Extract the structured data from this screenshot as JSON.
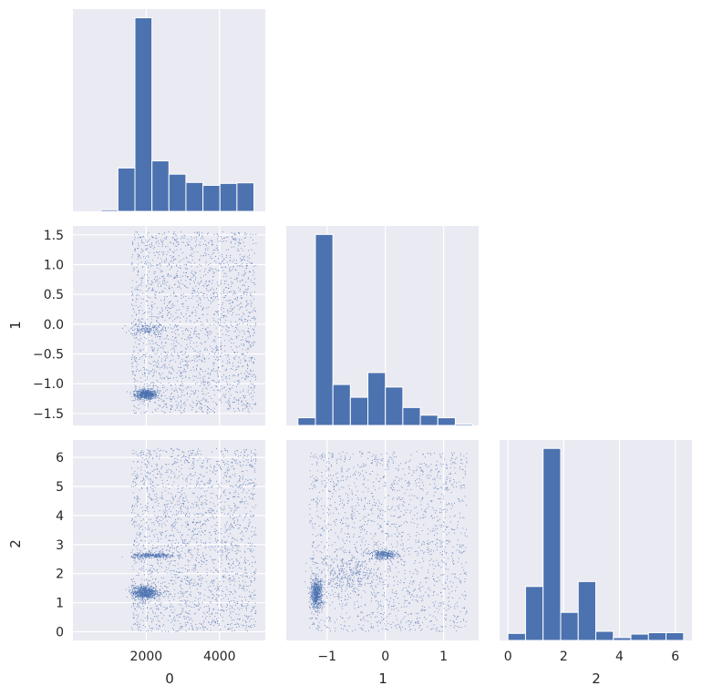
{
  "chart_data": [
    {
      "type": "bar",
      "panel": "hist-0",
      "variable": "0",
      "bin_edges": [
        300,
        764,
        1228,
        1692,
        2156,
        2620,
        3084,
        3548,
        4012,
        4476,
        4940
      ],
      "values": [
        0,
        8,
        225,
        1005,
        262,
        193,
        150,
        135,
        145,
        148
      ],
      "xlim": [
        0,
        5250
      ],
      "ylim": [
        0,
        1050
      ],
      "x_ticks": [
        "2000",
        "4000"
      ],
      "x_tick_values": [
        2000,
        4000
      ],
      "bar_color": "#4c72b0"
    },
    {
      "type": "scatter",
      "panel": "scatter-0-1",
      "x_variable": "0",
      "y_variable": "1",
      "xlim": [
        0,
        5250
      ],
      "ylim": [
        -1.7,
        1.65
      ],
      "y_ticks": [
        "−1.5",
        "−1.0",
        "−0.5",
        "0.0",
        "0.5",
        "1.0",
        "1.5"
      ],
      "y_tick_values": [
        -1.5,
        -1.0,
        -0.5,
        0.0,
        0.5,
        1.0,
        1.5
      ],
      "x_tick_values": [
        2000,
        4000
      ],
      "clusters": [
        {
          "x_mean": 2000,
          "x_sd": 150,
          "y_mean": -1.18,
          "y_sd": 0.04,
          "count": 650
        },
        {
          "x_mean": 2000,
          "x_sd": 220,
          "y_mean": -0.08,
          "y_sd": 0.05,
          "count": 140
        }
      ],
      "points_spread": [
        {
          "x_range": [
            1600,
            5000
          ],
          "y_range": [
            -1.5,
            1.55
          ],
          "count": 2300
        }
      ],
      "point_color": "#4c72b0"
    },
    {
      "type": "bar",
      "panel": "hist-1",
      "variable": "1",
      "bin_edges": [
        -1.5,
        -1.2,
        -0.9,
        -0.6,
        -0.3,
        0.0,
        0.3,
        0.6,
        0.9,
        1.2,
        1.5
      ],
      "values": [
        45,
        1120,
        240,
        165,
        310,
        225,
        105,
        60,
        45,
        8
      ],
      "xlim": [
        -1.7,
        1.6
      ],
      "ylim": [
        0,
        1170
      ],
      "x_ticks": [
        "−1",
        "0",
        "1"
      ],
      "x_tick_values": [
        -1,
        0,
        1
      ],
      "bar_color": "#4c72b0"
    },
    {
      "type": "scatter",
      "panel": "scatter-0-2",
      "x_variable": "0",
      "y_variable": "2",
      "xlim": [
        0,
        5250
      ],
      "ylim": [
        -0.3,
        6.6
      ],
      "x_ticks": [
        "2000",
        "4000"
      ],
      "x_tick_values": [
        2000,
        4000
      ],
      "y_ticks": [
        "0",
        "1",
        "2",
        "3",
        "4",
        "5",
        "6"
      ],
      "y_tick_values": [
        0,
        1,
        2,
        3,
        4,
        5,
        6
      ],
      "clusters": [
        {
          "x_mean": 1950,
          "x_sd": 170,
          "y_mean": 1.35,
          "y_sd": 0.12,
          "count": 700
        },
        {
          "x_mean": 2200,
          "x_sd": 300,
          "y_mean": 2.62,
          "y_sd": 0.05,
          "count": 300
        }
      ],
      "points_spread": [
        {
          "x_range": [
            1600,
            5000
          ],
          "y_range": [
            0.0,
            6.3
          ],
          "count": 2300
        }
      ],
      "xlabel": "0",
      "ylabel": "2",
      "point_color": "#4c72b0"
    },
    {
      "type": "scatter",
      "panel": "scatter-1-2",
      "x_variable": "1",
      "y_variable": "2",
      "xlim": [
        -1.7,
        1.6
      ],
      "ylim": [
        -0.3,
        6.6
      ],
      "x_ticks": [
        "−1",
        "0",
        "1"
      ],
      "x_tick_values": [
        -1,
        0,
        1
      ],
      "clusters": [
        {
          "x_mean": -1.18,
          "x_sd": 0.05,
          "y_mean": 1.3,
          "y_sd": 0.25,
          "count": 650
        },
        {
          "x_mean": -0.02,
          "x_sd": 0.12,
          "y_mean": 2.65,
          "y_sd": 0.08,
          "count": 320
        },
        {
          "x_mean": -0.6,
          "x_sd": 0.25,
          "y_mean": 2.0,
          "y_sd": 0.3,
          "count": 250
        }
      ],
      "points_spread": [
        {
          "x_range": [
            -1.3,
            1.4
          ],
          "y_range": [
            0.0,
            6.2
          ],
          "count": 1900
        }
      ],
      "xlabel": "1",
      "point_color": "#4c72b0"
    },
    {
      "type": "bar",
      "panel": "hist-2",
      "variable": "2",
      "bin_edges": [
        0.0,
        0.63,
        1.26,
        1.89,
        2.52,
        3.15,
        3.78,
        4.41,
        5.04,
        5.67,
        6.3
      ],
      "values": [
        50,
        385,
        1370,
        200,
        420,
        65,
        20,
        45,
        55,
        55
      ],
      "xlim": [
        -0.3,
        6.6
      ],
      "ylim": [
        0,
        1430
      ],
      "x_ticks": [
        "0",
        "2",
        "4",
        "6"
      ],
      "x_tick_values": [
        0,
        2,
        4,
        6
      ],
      "xlabel": "2",
      "bar_color": "#4c72b0"
    }
  ],
  "ylabel_row1": "1",
  "style": {
    "panel_bg": "#eaeaf2",
    "grid_color": "#ffffff",
    "accent": "#4c72b0",
    "text_color": "#262626"
  }
}
